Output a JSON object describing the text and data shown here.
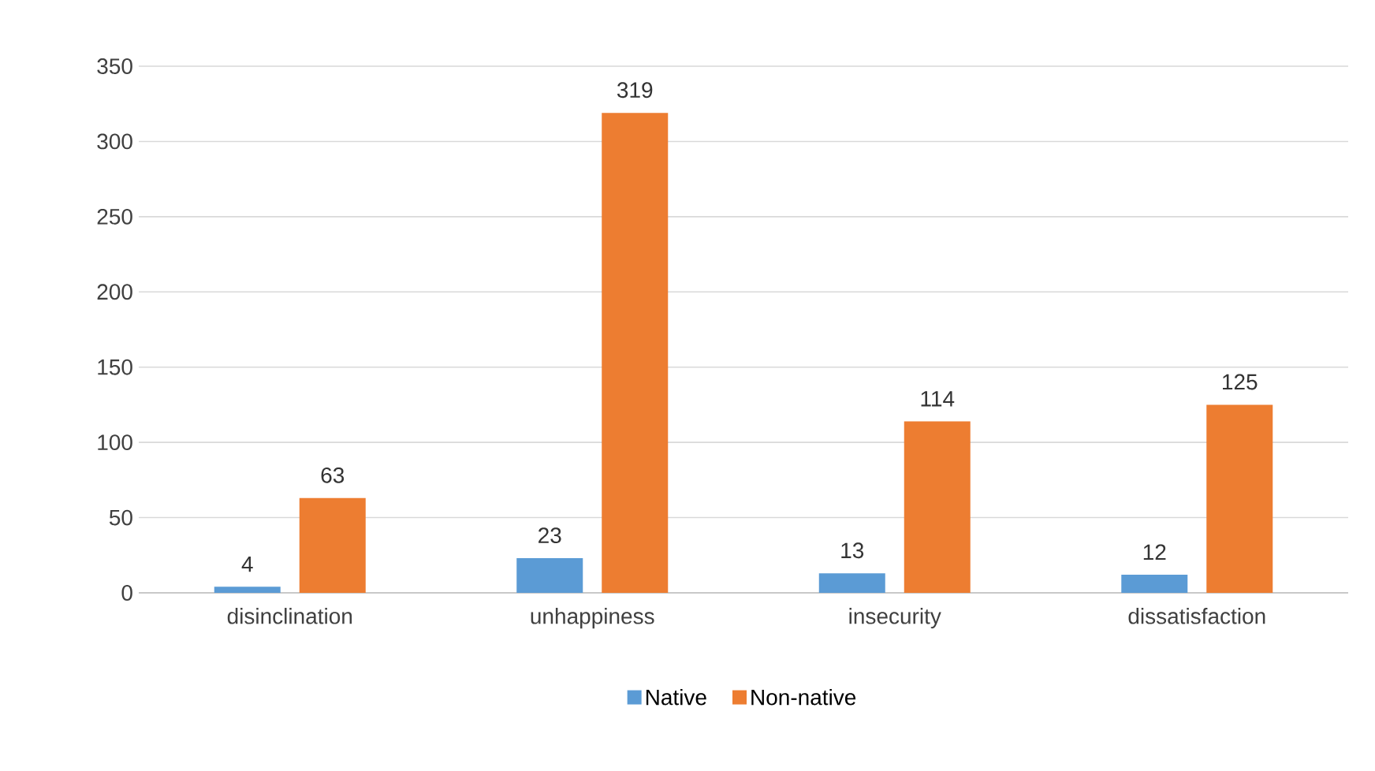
{
  "chart_data": {
    "type": "bar",
    "categories": [
      "disinclination",
      "unhappiness",
      "insecurity",
      "dissatisfaction"
    ],
    "series": [
      {
        "name": "Native",
        "color": "#5b9bd5",
        "values": [
          4,
          23,
          13,
          12
        ]
      },
      {
        "name": "Non-native",
        "color": "#ed7d31",
        "values": [
          63,
          319,
          114,
          125
        ]
      }
    ],
    "ylim": [
      0,
      350
    ],
    "yticks": [
      0,
      50,
      100,
      150,
      200,
      250,
      300,
      350
    ],
    "grid": "y",
    "legend": "bottom",
    "data_labels": true
  }
}
